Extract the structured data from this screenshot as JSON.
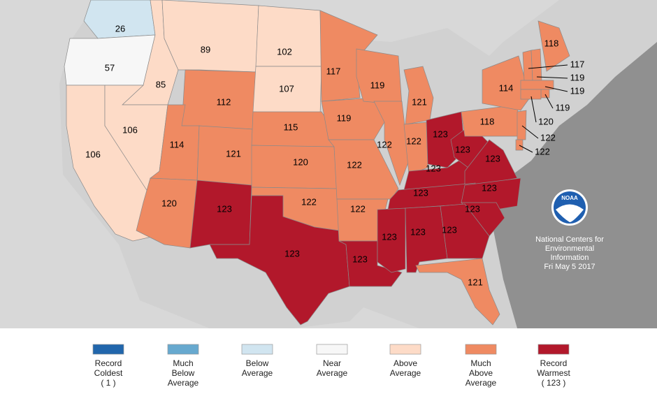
{
  "map": {
    "states": [
      {
        "rank": 26,
        "color": "#d1e5f0"
      },
      {
        "rank": 57,
        "color": "#f7f7f7"
      },
      {
        "rank": 106,
        "color": "#fddbc7"
      },
      {
        "rank": 85,
        "color": "#fddbc7"
      },
      {
        "rank": 106,
        "color": "#fddbc7"
      },
      {
        "rank": 89,
        "color": "#fddbc7"
      },
      {
        "rank": 112,
        "color": "#ef8a62"
      },
      {
        "rank": 114,
        "color": "#ef8a62"
      },
      {
        "rank": 121,
        "color": "#ef8a62"
      },
      {
        "rank": 120,
        "color": "#ef8a62"
      },
      {
        "rank": 123,
        "color": "#b2182b"
      },
      {
        "rank": 102,
        "color": "#fddbc7"
      },
      {
        "rank": 107,
        "color": "#fddbc7"
      },
      {
        "rank": 115,
        "color": "#ef8a62"
      },
      {
        "rank": 120,
        "color": "#ef8a62"
      },
      {
        "rank": 122,
        "color": "#ef8a62"
      },
      {
        "rank": 123,
        "color": "#b2182b"
      },
      {
        "rank": 117,
        "color": "#ef8a62"
      },
      {
        "rank": 119,
        "color": "#ef8a62"
      },
      {
        "rank": 122,
        "color": "#ef8a62"
      },
      {
        "rank": 122,
        "color": "#ef8a62"
      },
      {
        "rank": 123,
        "color": "#b2182b"
      },
      {
        "rank": 119,
        "color": "#ef8a62"
      },
      {
        "rank": 122,
        "color": "#ef8a62"
      },
      {
        "rank": 121,
        "color": "#ef8a62"
      },
      {
        "rank": 122,
        "color": "#ef8a62"
      },
      {
        "rank": 123,
        "color": "#b2182b"
      },
      {
        "rank": 123,
        "color": "#b2182b"
      },
      {
        "rank": 123,
        "color": "#b2182b"
      },
      {
        "rank": 123,
        "color": "#b2182b"
      },
      {
        "rank": 123,
        "color": "#b2182b"
      },
      {
        "rank": 123,
        "color": "#b2182b"
      },
      {
        "rank": 123,
        "color": "#b2182b"
      },
      {
        "rank": 123,
        "color": "#b2182b"
      },
      {
        "rank": 123,
        "color": "#b2182b"
      },
      {
        "rank": 123,
        "color": "#b2182b"
      },
      {
        "rank": 121,
        "color": "#ef8a62"
      },
      {
        "rank": 118,
        "color": "#ef8a62"
      },
      {
        "rank": 114,
        "color": "#ef8a62"
      },
      {
        "rank": 118,
        "color": "#ef8a62"
      },
      {
        "rank": 117,
        "color": "#ef8a62"
      },
      {
        "rank": 119,
        "color": "#ef8a62"
      },
      {
        "rank": 119,
        "color": "#ef8a62"
      },
      {
        "rank": 119,
        "color": "#ef8a62"
      },
      {
        "rank": 120,
        "color": "#ef8a62"
      },
      {
        "rank": 122,
        "color": "#ef8a62"
      },
      {
        "rank": 122,
        "color": "#ef8a62"
      }
    ]
  },
  "logo": "NOAA",
  "source": [
    "National Centers for",
    "Environmental",
    "Information",
    "Fri May  5 2017"
  ],
  "legend": [
    {
      "lines": [
        "Record",
        "Coldest",
        "( 1 )"
      ],
      "color": "#2166ac"
    },
    {
      "lines": [
        "Much",
        "Below",
        "Average"
      ],
      "color": "#67a9cf"
    },
    {
      "lines": [
        "Below",
        "Average"
      ],
      "color": "#d1e5f0"
    },
    {
      "lines": [
        "Near",
        "Average"
      ],
      "color": "#f7f7f7"
    },
    {
      "lines": [
        "Above",
        "Average"
      ],
      "color": "#fddbc7"
    },
    {
      "lines": [
        "Much",
        "Above",
        "Average"
      ],
      "color": "#ef8a62"
    },
    {
      "lines": [
        "Record",
        "Warmest",
        "( 123 )"
      ],
      "color": "#b2182b"
    }
  ]
}
